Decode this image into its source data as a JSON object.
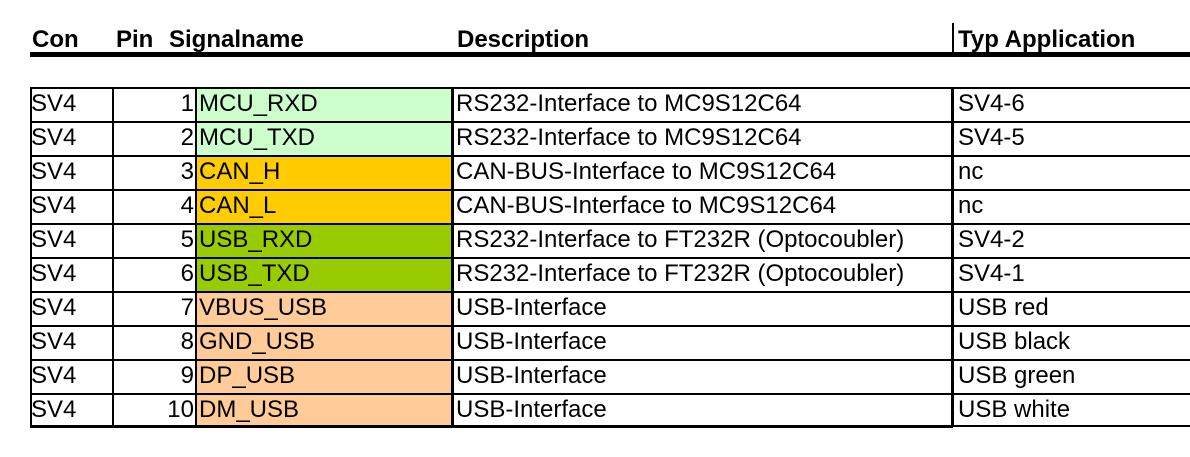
{
  "header": {
    "con": "Con",
    "pin": "Pin",
    "signalname": "Signalname",
    "description": "Description",
    "typ_application": "Typ Application"
  },
  "rows": [
    {
      "con": "SV4",
      "pin": "1",
      "signal": "MCU_RXD",
      "description": "RS232-Interface to MC9S12C64",
      "application": "SV4-6",
      "signal_color": "#ccffcc"
    },
    {
      "con": "SV4",
      "pin": "2",
      "signal": "MCU_TXD",
      "description": "RS232-Interface to MC9S12C64",
      "application": "SV4-5",
      "signal_color": "#ccffcc"
    },
    {
      "con": "SV4",
      "pin": "3",
      "signal": "CAN_H",
      "description": "CAN-BUS-Interface to MC9S12C64",
      "application": "nc",
      "signal_color": "#ffcc00"
    },
    {
      "con": "SV4",
      "pin": "4",
      "signal": "CAN_L",
      "description": "CAN-BUS-Interface to MC9S12C64",
      "application": "nc",
      "signal_color": "#ffcc00"
    },
    {
      "con": "SV4",
      "pin": "5",
      "signal": "USB_RXD",
      "description": "RS232-Interface to FT232R (Optocoubler)",
      "application": "SV4-2",
      "signal_color": "#99cc00"
    },
    {
      "con": "SV4",
      "pin": "6",
      "signal": "USB_TXD",
      "description": "RS232-Interface to FT232R (Optocoubler)",
      "application": "SV4-1",
      "signal_color": "#99cc00"
    },
    {
      "con": "SV4",
      "pin": "7",
      "signal": "VBUS_USB",
      "description": "USB-Interface",
      "application": "USB red",
      "signal_color": "#ffcc99"
    },
    {
      "con": "SV4",
      "pin": "8",
      "signal": "GND_USB",
      "description": "USB-Interface",
      "application": "USB black",
      "signal_color": "#ffcc99"
    },
    {
      "con": "SV4",
      "pin": "9",
      "signal": "DP_USB",
      "description": "USB-Interface",
      "application": "USB green",
      "signal_color": "#ffcc99"
    },
    {
      "con": "SV4",
      "pin": "10",
      "signal": "DM_USB",
      "description": "USB-Interface",
      "application": "USB white",
      "signal_color": "#ffcc99"
    }
  ]
}
